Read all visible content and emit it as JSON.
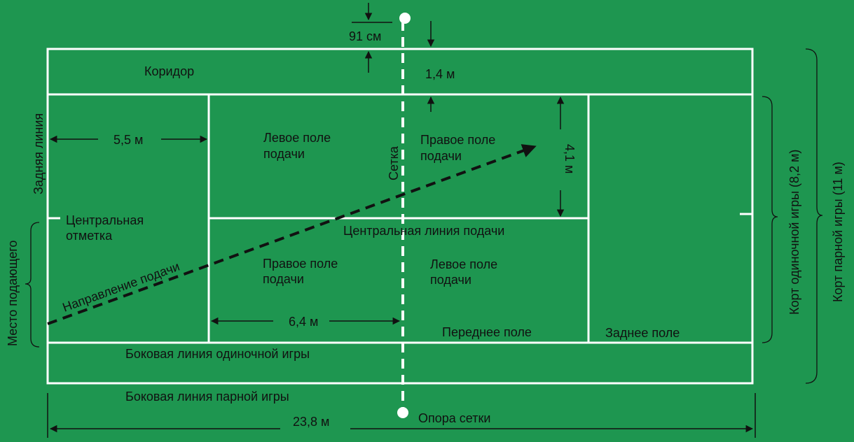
{
  "colors": {
    "court": "#1e9650",
    "lines": "#ffffff",
    "text": "#111111",
    "arrow": "#111111"
  },
  "labels": {
    "corridor": "Коридор",
    "net_height_post": "91 см",
    "corridor_width": "1,4 м",
    "baseline": "Задняя линия",
    "baseline_to_service": "5,5 м",
    "left_service_box_top_1": "Левое поле",
    "left_service_box_top_2": "подачи",
    "net": "Сетка",
    "right_service_box_top_1": "Правое поле",
    "right_service_box_top_2": "подачи",
    "service_box_width": "4,1 м",
    "center_mark_1": "Центральная",
    "center_mark_2": "отметка",
    "center_service_line": "Центральная линия подачи",
    "serve_direction": "Направление подачи",
    "right_service_box_bottom_1": "Правое поле",
    "right_service_box_bottom_2": "подачи",
    "left_service_box_bottom_1": "Левое поле",
    "left_service_box_bottom_2": "подачи",
    "service_line_to_net": "6,4 м",
    "front_court": "Переднее поле",
    "back_court": "Заднее поле",
    "singles_sideline": "Боковая линия одиночной игры",
    "doubles_sideline": "Боковая линия парной игры",
    "server_position": "Место подающего",
    "singles_court_width": "Корт одиночной игры (8,2 м)",
    "doubles_court_width": "Корт парной игры (11 м)",
    "net_post": "Опора сетки",
    "court_length": "23,8 м"
  }
}
